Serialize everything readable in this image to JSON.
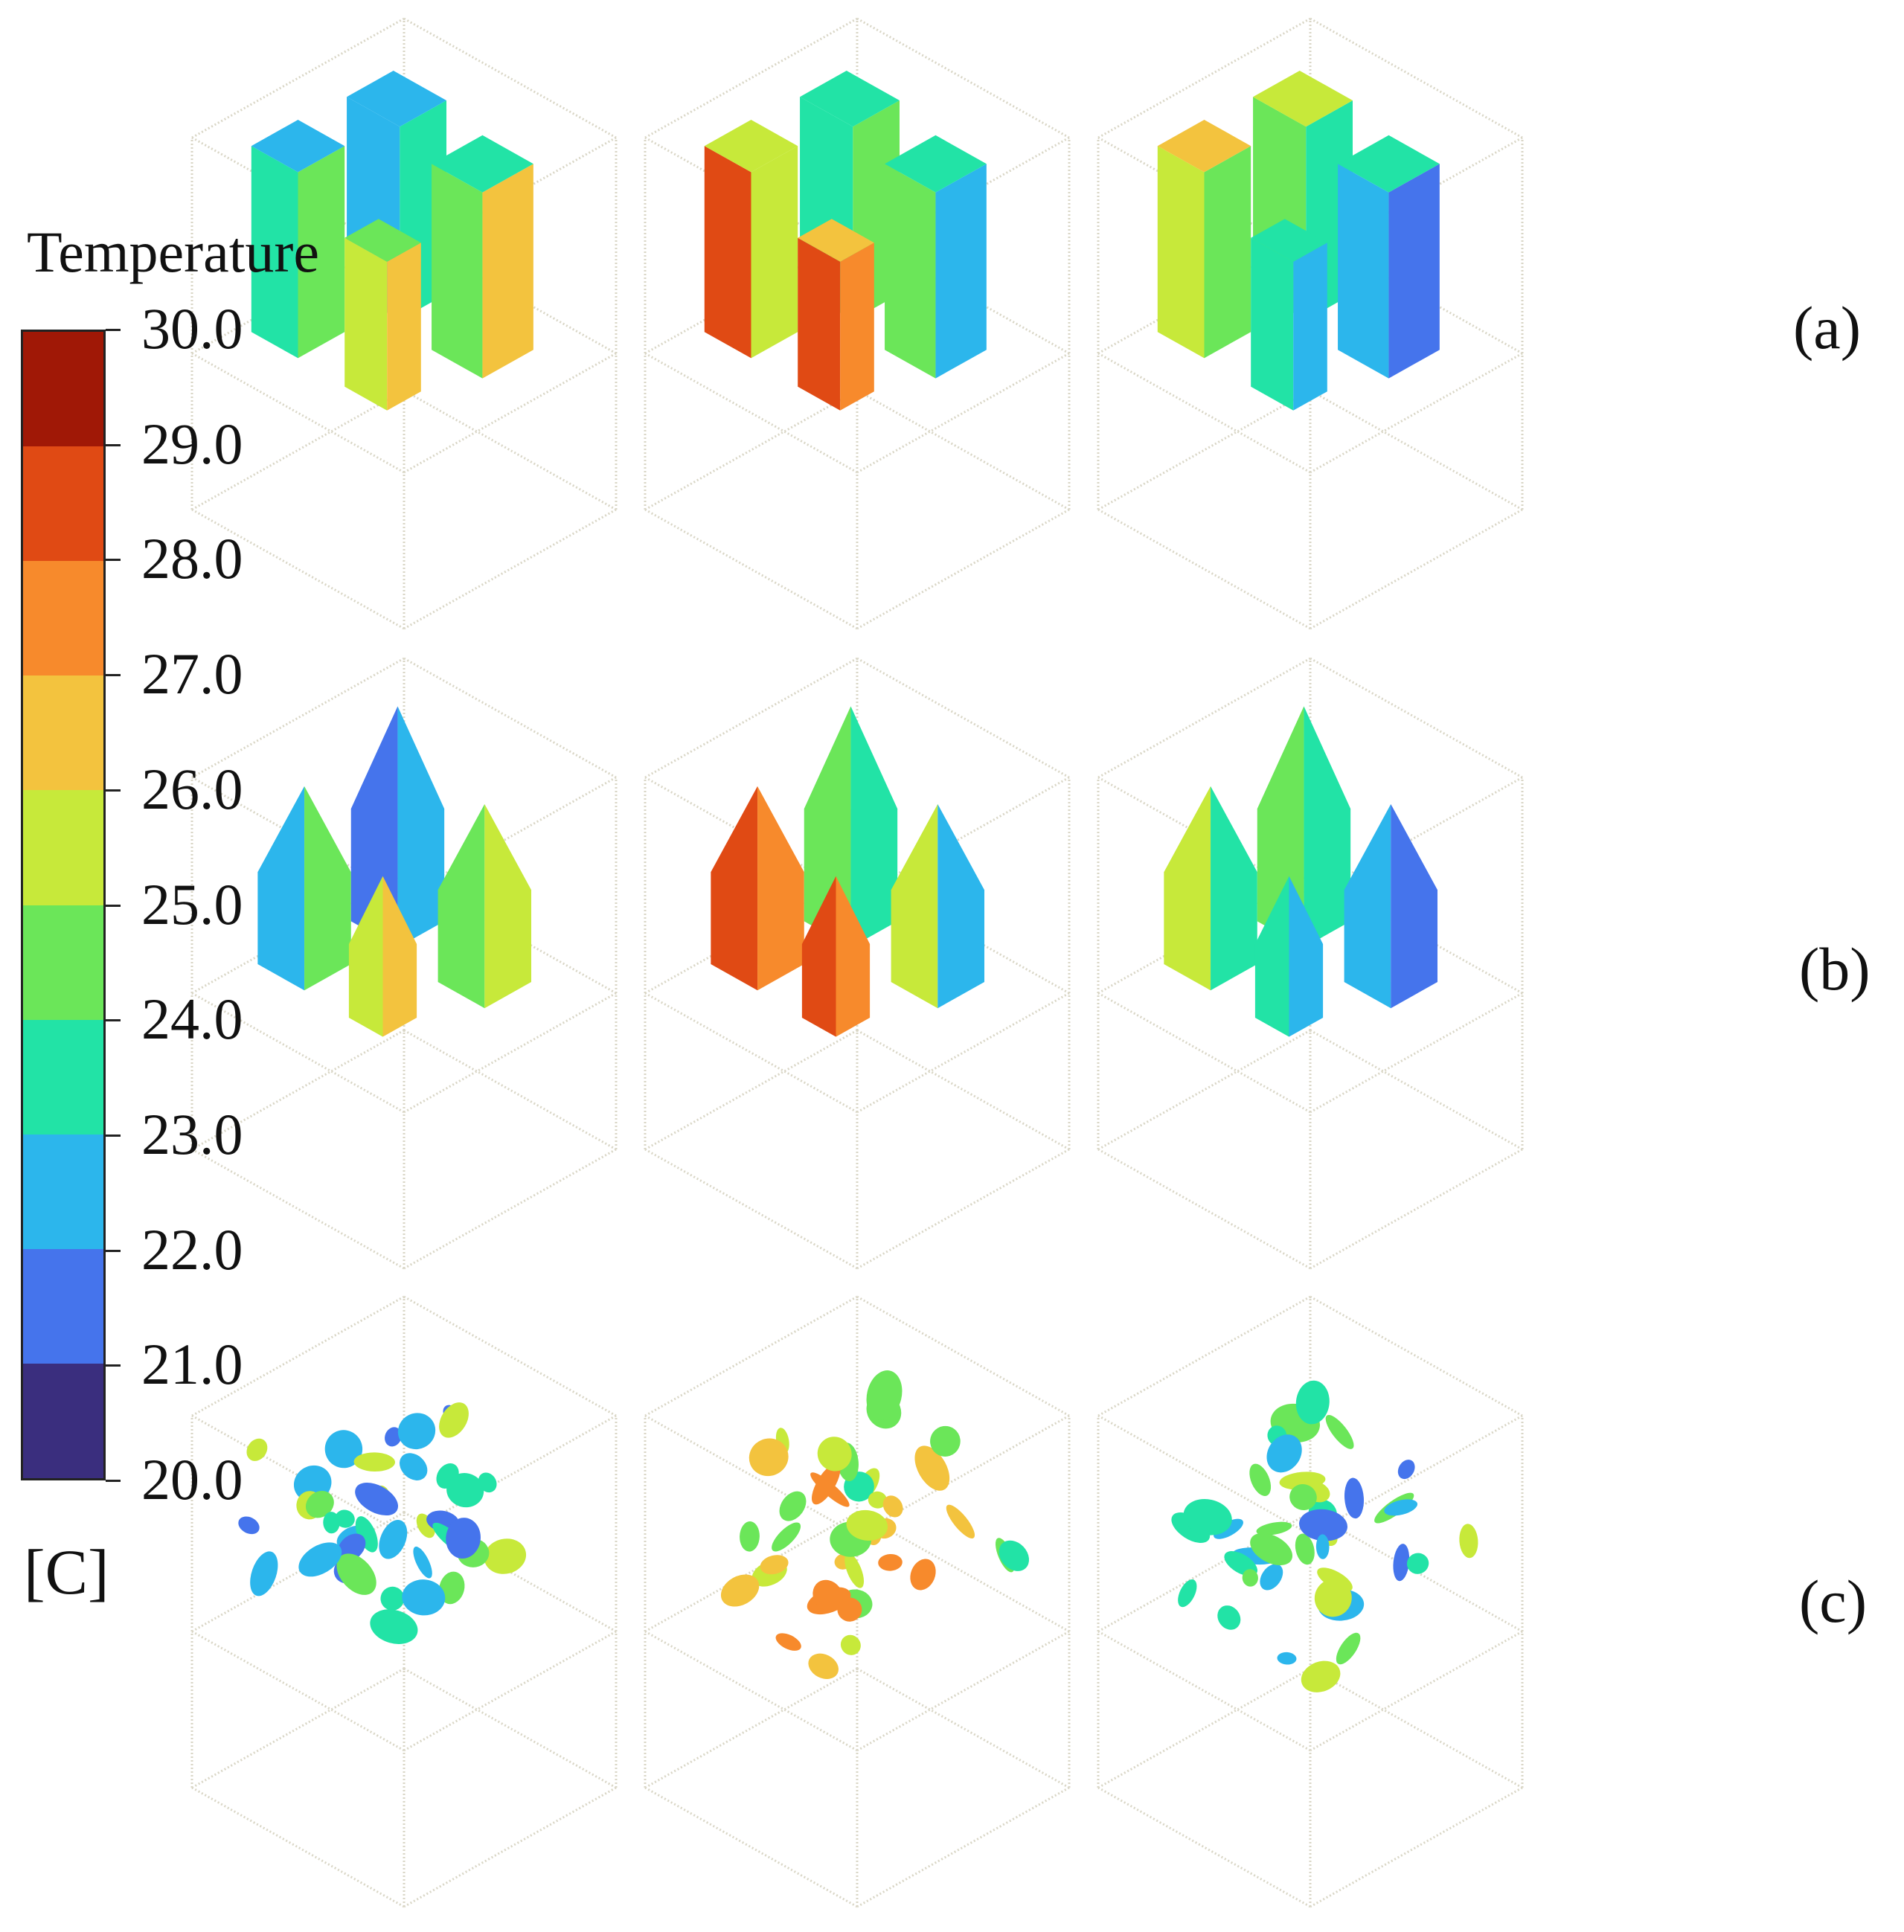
{
  "legend": {
    "title": "Temperature",
    "unit": "[C]",
    "ticks": [
      "30.0",
      "29.0",
      "28.0",
      "27.0",
      "26.0",
      "25.0",
      "24.0",
      "23.0",
      "22.0",
      "21.0",
      "20.0"
    ],
    "bands": [
      {
        "from": 29,
        "to": 30,
        "color": "#a01806"
      },
      {
        "from": 28,
        "to": 29,
        "color": "#e04a14"
      },
      {
        "from": 27,
        "to": 28,
        "color": "#f78a2c"
      },
      {
        "from": 26,
        "to": 27,
        "color": "#f3c33e"
      },
      {
        "from": 25,
        "to": 26,
        "color": "#c7e93a"
      },
      {
        "from": 24,
        "to": 25,
        "color": "#6be659"
      },
      {
        "from": 23,
        "to": 24,
        "color": "#22e3a6"
      },
      {
        "from": 22,
        "to": 23,
        "color": "#2cb6ec"
      },
      {
        "from": 21,
        "to": 22,
        "color": "#4574ec"
      },
      {
        "from": 20,
        "to": 21,
        "color": "#3a2e7e"
      }
    ]
  },
  "rows": [
    {
      "label": "(a)",
      "shape": "rectangular blocks",
      "panels": [
        {
          "objects": [
            {
              "top": "#2cb6ec",
              "left": "#22e3a6",
              "right": "#6be659"
            },
            {
              "top": "#2cb6ec",
              "left": "#2cb6ec",
              "right": "#22e3a6"
            },
            {
              "top": "#22e3a6",
              "left": "#6be659",
              "right": "#f3c33e"
            },
            {
              "top": "#6be659",
              "left": "#c7e93a",
              "right": "#f3c33e"
            }
          ]
        },
        {
          "objects": [
            {
              "top": "#c7e93a",
              "left": "#e04a14",
              "right": "#c7e93a"
            },
            {
              "top": "#22e3a6",
              "left": "#22e3a6",
              "right": "#6be659"
            },
            {
              "top": "#22e3a6",
              "left": "#6be659",
              "right": "#2cb6ec"
            },
            {
              "top": "#f3c33e",
              "left": "#e04a14",
              "right": "#f78a2c"
            }
          ]
        },
        {
          "objects": [
            {
              "top": "#f3c33e",
              "left": "#c7e93a",
              "right": "#6be659"
            },
            {
              "top": "#c7e93a",
              "left": "#6be659",
              "right": "#22e3a6"
            },
            {
              "top": "#22e3a6",
              "left": "#2cb6ec",
              "right": "#4574ec"
            },
            {
              "top": "#22e3a6",
              "left": "#22e3a6",
              "right": "#2cb6ec"
            }
          ]
        }
      ]
    },
    {
      "label": "(b)",
      "shape": "tapered forms",
      "panels": [
        {
          "objects": [
            {
              "left": "#2cb6ec",
              "right": "#6be659"
            },
            {
              "left": "#4574ec",
              "right": "#2cb6ec"
            },
            {
              "left": "#6be659",
              "right": "#c7e93a"
            },
            {
              "left": "#c7e93a",
              "right": "#f3c33e"
            }
          ]
        },
        {
          "objects": [
            {
              "left": "#e04a14",
              "right": "#f78a2c"
            },
            {
              "left": "#6be659",
              "right": "#22e3a6"
            },
            {
              "left": "#c7e93a",
              "right": "#2cb6ec"
            },
            {
              "left": "#e04a14",
              "right": "#f78a2c"
            }
          ]
        },
        {
          "objects": [
            {
              "left": "#c7e93a",
              "right": "#22e3a6"
            },
            {
              "left": "#6be659",
              "right": "#22e3a6"
            },
            {
              "left": "#2cb6ec",
              "right": "#4574ec"
            },
            {
              "left": "#22e3a6",
              "right": "#2cb6ec"
            }
          ]
        }
      ]
    },
    {
      "label": "(c)",
      "shape": "scattered fragments",
      "panels": [
        {
          "palette": [
            "#4574ec",
            "#2cb6ec",
            "#22e3a6",
            "#6be659",
            "#c7e93a"
          ]
        },
        {
          "palette": [
            "#f78a2c",
            "#f3c33e",
            "#c7e93a",
            "#6be659",
            "#22e3a6"
          ]
        },
        {
          "palette": [
            "#c7e93a",
            "#6be659",
            "#22e3a6",
            "#2cb6ec",
            "#4574ec"
          ]
        }
      ]
    }
  ]
}
